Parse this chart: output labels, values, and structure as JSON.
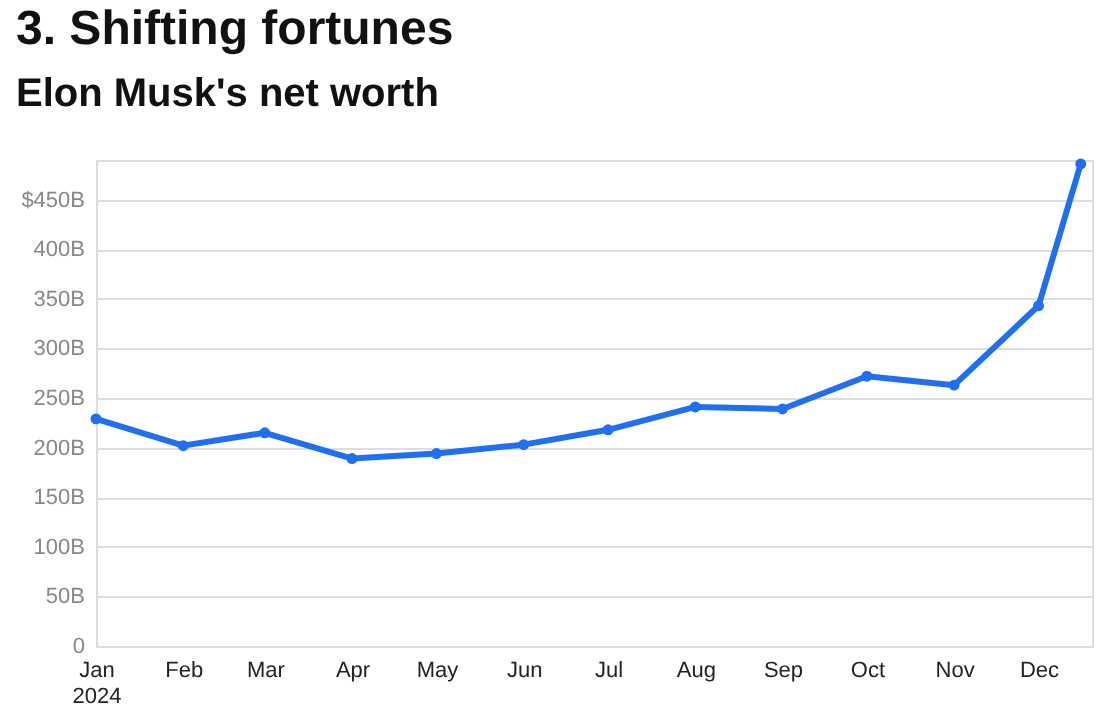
{
  "chart_data": {
    "type": "line",
    "title": "3. Shifting fortunes",
    "subtitle": "Elon Musk's net worth",
    "x": [
      "2024-01-01",
      "2024-02-01",
      "2024-03-01",
      "2024-04-01",
      "2024-05-01",
      "2024-06-01",
      "2024-07-01",
      "2024-08-01",
      "2024-09-01",
      "2024-10-01",
      "2024-11-01",
      "2024-12-01",
      "2024-12-16"
    ],
    "series": [
      {
        "color": "#1f6fef",
        "values": [
          229,
          202,
          215,
          189,
          194,
          203,
          218,
          241,
          239,
          272,
          263,
          343,
          486
        ]
      }
    ],
    "xlim": [
      "2024-01-01",
      "2024-12-20"
    ],
    "xticks": [
      {
        "value": "2024-01-01",
        "label": "Jan 2024"
      },
      {
        "value": "2024-02-01",
        "label": "Feb"
      },
      {
        "value": "2024-03-01",
        "label": "Mar"
      },
      {
        "value": "2024-04-01",
        "label": "Apr"
      },
      {
        "value": "2024-05-01",
        "label": "May"
      },
      {
        "value": "2024-06-01",
        "label": "Jun"
      },
      {
        "value": "2024-07-01",
        "label": "Jul"
      },
      {
        "value": "2024-08-01",
        "label": "Aug"
      },
      {
        "value": "2024-09-01",
        "label": "Sep"
      },
      {
        "value": "2024-10-01",
        "label": "Oct"
      },
      {
        "value": "2024-11-01",
        "label": "Nov"
      },
      {
        "value": "2024-12-01",
        "label": "Dec"
      }
    ],
    "ylim": [
      0,
      490
    ],
    "yticks": [
      0,
      {
        "value": 50,
        "label": "50B"
      },
      {
        "value": 100,
        "label": "100B"
      },
      {
        "value": 150,
        "label": "150B"
      },
      {
        "value": 200,
        "label": "200B"
      },
      {
        "value": 250,
        "label": "250B"
      },
      {
        "value": 300,
        "label": "300B"
      },
      {
        "value": 350,
        "label": "350B"
      },
      {
        "value": 400,
        "label": "400B"
      },
      {
        "value": 450,
        "label": "$450B"
      }
    ],
    "grid": "y",
    "marker": "circle",
    "line_style": "solid"
  }
}
